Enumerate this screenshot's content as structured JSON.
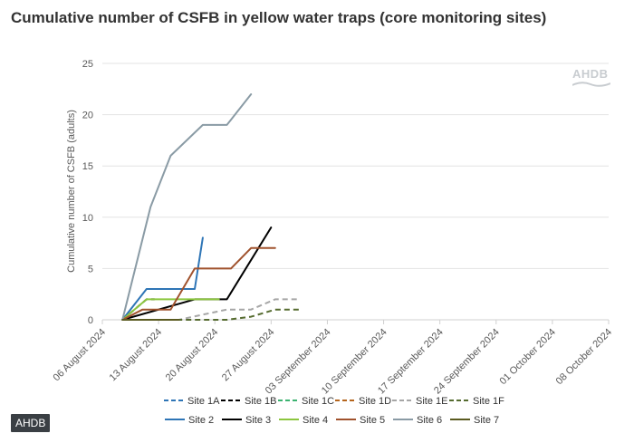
{
  "page_title": "Cumulative number of CSFB in yellow water traps (core monitoring sites)",
  "watermark_text": "AHDB",
  "footer_badge": "AHDB",
  "chart_data": {
    "type": "line",
    "title": "Cumulative number of CSFB in yellow water traps (core monitoring sites)",
    "xlabel": "",
    "ylabel": "Cumulative number of CSFB (adults)",
    "ylim": [
      0,
      25
    ],
    "yticks": [
      0,
      5,
      10,
      15,
      20,
      25
    ],
    "x_unit": "days since 06 August 2024",
    "xlim": [
      0,
      63
    ],
    "xticks": [
      {
        "value": 0,
        "label": "06 August 2024"
      },
      {
        "value": 7,
        "label": "13 August 2024"
      },
      {
        "value": 14,
        "label": "20 August 2024"
      },
      {
        "value": 21,
        "label": "27 August 2024"
      },
      {
        "value": 28,
        "label": "03 September 2024"
      },
      {
        "value": 35,
        "label": "10 September 2024"
      },
      {
        "value": 42,
        "label": "17 September 2024"
      },
      {
        "value": 49,
        "label": "24 September 2024"
      },
      {
        "value": 56,
        "label": "01 October 2024"
      },
      {
        "value": 63,
        "label": "08 October 2024"
      }
    ],
    "grid": true,
    "legend_position": "bottom",
    "series": [
      {
        "name": "Site 1A",
        "color": "#2e75b6",
        "dashed": true,
        "x": [],
        "y": []
      },
      {
        "name": "Site 1B",
        "color": "#000000",
        "dashed": true,
        "x": [
          2.5,
          5.5,
          6.5
        ],
        "y": [
          0,
          2,
          2
        ]
      },
      {
        "name": "Site 1C",
        "color": "#3cb371",
        "dashed": true,
        "x": [],
        "y": []
      },
      {
        "name": "Site 1D",
        "color": "#b5651d",
        "dashed": true,
        "x": [],
        "y": []
      },
      {
        "name": "Site 1E",
        "color": "#a6a6a6",
        "dashed": true,
        "x": [
          2.5,
          9.5,
          12.5,
          15.5,
          18.5,
          21.5,
          24.5
        ],
        "y": [
          0,
          0,
          0.5,
          1,
          1,
          2,
          2
        ]
      },
      {
        "name": "Site 1F",
        "color": "#556b2f",
        "dashed": true,
        "x": [
          2.5,
          15.5,
          18.5,
          21.5,
          24.5
        ],
        "y": [
          0,
          0,
          0.3,
          1,
          1
        ]
      },
      {
        "name": "Site 2",
        "color": "#2e75b6",
        "dashed": false,
        "x": [
          2.5,
          5.5,
          9,
          11.5,
          12.5
        ],
        "y": [
          0,
          3,
          3,
          3,
          8
        ]
      },
      {
        "name": "Site 3",
        "color": "#000000",
        "dashed": false,
        "x": [
          2.5,
          11.5,
          15.5,
          21
        ],
        "y": [
          0,
          2,
          2,
          9
        ]
      },
      {
        "name": "Site 4",
        "color": "#8cc63f",
        "dashed": false,
        "x": [
          2.5,
          5.5,
          14.5
        ],
        "y": [
          0,
          2,
          2
        ]
      },
      {
        "name": "Site 5",
        "color": "#a0522d",
        "dashed": false,
        "x": [
          2.5,
          5,
          8.5,
          11.5,
          14.5,
          16,
          18.5,
          21.5
        ],
        "y": [
          0,
          1,
          1,
          5,
          5,
          5,
          7,
          7
        ]
      },
      {
        "name": "Site 6",
        "color": "#8a9ba5",
        "dashed": false,
        "x": [
          2.5,
          6,
          8.5,
          12.5,
          15.5,
          18.5
        ],
        "y": [
          0,
          11,
          16,
          19,
          19,
          22
        ]
      },
      {
        "name": "Site 7",
        "color": "#5a5a20",
        "dashed": false,
        "x": [
          2.5,
          5.5,
          9.5
        ],
        "y": [
          0,
          0,
          0
        ]
      }
    ]
  }
}
